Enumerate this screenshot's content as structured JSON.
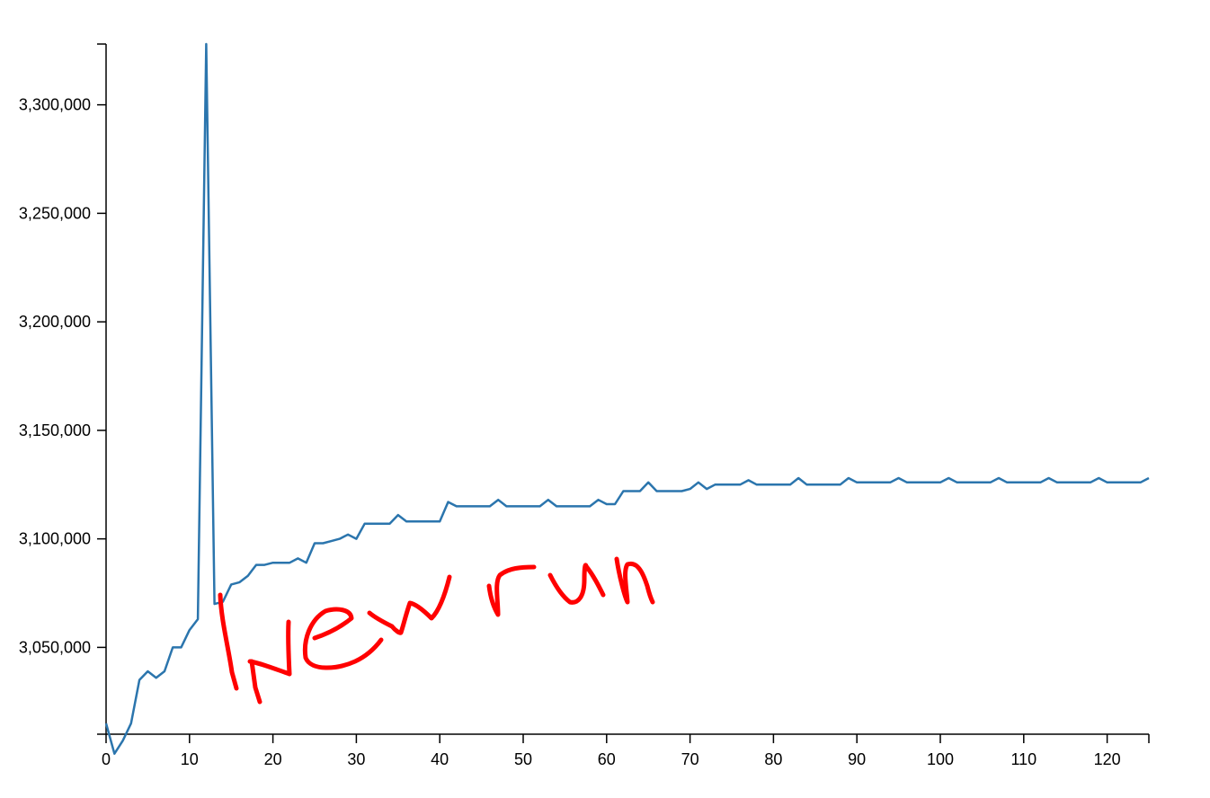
{
  "colors": {
    "line": "#2b75ad",
    "annotation": "#ff0000",
    "axis": "#000000"
  },
  "chart_data": {
    "type": "line",
    "title": "",
    "xlabel": "",
    "ylabel": "",
    "xlim": [
      0,
      125
    ],
    "ylim": [
      3010000,
      3328000
    ],
    "grid": false,
    "legend": "none",
    "x_ticks": [
      0,
      10,
      20,
      30,
      40,
      50,
      60,
      70,
      80,
      90,
      100,
      110,
      120
    ],
    "x_tick_labels": [
      "0",
      "10",
      "20",
      "30",
      "40",
      "50",
      "60",
      "70",
      "80",
      "90",
      "100",
      "110",
      "120"
    ],
    "y_ticks": [
      3050000,
      3100000,
      3150000,
      3200000,
      3250000,
      3300000
    ],
    "y_tick_labels": [
      "3,050,000",
      "3,100,000",
      "3,150,000",
      "3,200,000",
      "3,250,000",
      "3,300,000"
    ],
    "annotation": "new run",
    "series": [
      {
        "x": [
          0,
          1,
          2,
          3,
          4,
          5,
          6,
          7,
          8,
          9,
          10,
          11,
          12,
          13,
          14,
          15,
          16,
          17,
          18,
          19,
          20,
          21,
          22,
          23,
          24,
          25,
          26,
          27,
          28,
          29,
          30,
          31,
          32,
          33,
          34,
          35,
          36,
          37,
          38,
          39,
          40,
          41,
          42,
          43,
          44,
          45,
          46,
          47,
          48,
          49,
          50,
          51,
          52,
          53,
          54,
          55,
          56,
          57,
          58,
          59,
          60,
          61,
          62,
          63,
          64,
          65,
          66,
          67,
          68,
          69,
          70,
          71,
          72,
          73,
          74,
          75,
          76,
          77,
          78,
          79,
          80,
          81,
          82,
          83,
          84,
          85,
          86,
          87,
          88,
          89,
          90,
          91,
          92,
          93,
          94,
          95,
          96,
          97,
          98,
          99,
          100,
          101,
          102,
          103,
          104,
          105,
          106,
          107,
          108,
          109,
          110,
          111,
          112,
          113,
          114,
          115,
          116,
          117,
          118,
          119,
          120,
          121,
          122,
          123,
          124,
          125
        ],
        "y": [
          3015000,
          3001000,
          3007000,
          3015000,
          3035000,
          3039000,
          3036000,
          3039000,
          3050000,
          3050000,
          3058000,
          3063000,
          3328000,
          3070000,
          3071000,
          3079000,
          3080000,
          3083000,
          3088000,
          3088000,
          3089000,
          3089000,
          3089000,
          3091000,
          3089000,
          3098000,
          3098000,
          3099000,
          3100000,
          3102000,
          3100000,
          3107000,
          3107000,
          3107000,
          3107000,
          3111000,
          3108000,
          3108000,
          3108000,
          3108000,
          3108000,
          3117000,
          3115000,
          3115000,
          3115000,
          3115000,
          3115000,
          3118000,
          3115000,
          3115000,
          3115000,
          3115000,
          3115000,
          3118000,
          3115000,
          3115000,
          3115000,
          3115000,
          3115000,
          3118000,
          3116000,
          3116000,
          3122000,
          3122000,
          3122000,
          3126000,
          3122000,
          3122000,
          3122000,
          3122000,
          3123000,
          3126000,
          3123000,
          3125000,
          3125000,
          3125000,
          3125000,
          3127000,
          3125000,
          3125000,
          3125000,
          3125000,
          3125000,
          3128000,
          3125000,
          3125000,
          3125000,
          3125000,
          3125000,
          3128000,
          3126000,
          3126000,
          3126000,
          3126000,
          3126000,
          3128000,
          3126000,
          3126000,
          3126000,
          3126000,
          3126000,
          3128000,
          3126000,
          3126000,
          3126000,
          3126000,
          3126000,
          3128000,
          3126000,
          3126000,
          3126000,
          3126000,
          3126000,
          3128000,
          3126000,
          3126000,
          3126000,
          3126000,
          3126000,
          3128000,
          3126000,
          3126000,
          3126000,
          3126000,
          3126000,
          3128000
        ]
      }
    ]
  }
}
